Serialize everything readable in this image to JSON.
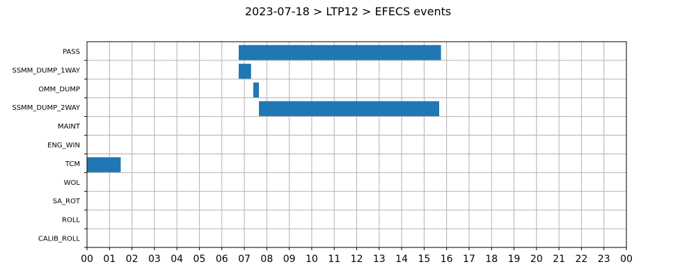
{
  "title": "2023-07-18 > LTP12 > EFECS events",
  "chart_data": {
    "type": "bar",
    "orientation": "horizontal-timeline",
    "title": "2023-07-18 > LTP12 > EFECS events",
    "xlabel": "",
    "ylabel": "",
    "categories": [
      "PASS",
      "SSMM_DUMP_1WAY",
      "OMM_DUMP",
      "SSMM_DUMP_2WAY",
      "MAINT",
      "ENG_WIN",
      "TCM",
      "WOL",
      "SA_ROT",
      "ROLL",
      "CALIB_ROLL"
    ],
    "x_tick_labels": [
      "00",
      "01",
      "02",
      "03",
      "04",
      "05",
      "06",
      "07",
      "08",
      "09",
      "10",
      "11",
      "12",
      "13",
      "14",
      "15",
      "16",
      "17",
      "18",
      "19",
      "20",
      "21",
      "22",
      "23",
      "00"
    ],
    "xlim": [
      0,
      24
    ],
    "grid": true,
    "bar_color": "#1f77b4",
    "intervals": [
      {
        "category": "PASS",
        "start": 6.75,
        "end": 15.75
      },
      {
        "category": "SSMM_DUMP_1WAY",
        "start": 6.75,
        "end": 7.3
      },
      {
        "category": "OMM_DUMP",
        "start": 7.4,
        "end": 7.65
      },
      {
        "category": "SSMM_DUMP_2WAY",
        "start": 7.65,
        "end": 15.67
      },
      {
        "category": "TCM",
        "start": 0.0,
        "end": 1.5
      }
    ]
  }
}
